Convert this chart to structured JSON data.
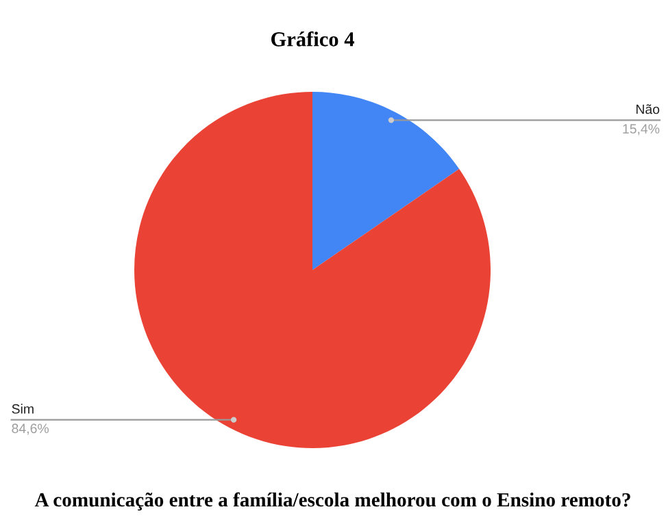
{
  "chart_data": {
    "type": "pie",
    "title": "Gráfico 4",
    "categories": [
      "Não",
      "Sim"
    ],
    "values": [
      15.4,
      84.6
    ],
    "colors": [
      "#4285f4",
      "#ea4335"
    ],
    "value_labels": [
      "15,4%",
      "84,6%"
    ],
    "annotations": [
      "A comunicação entre a família/escola melhorou com o Ensino remoto?"
    ],
    "legend": false
  }
}
